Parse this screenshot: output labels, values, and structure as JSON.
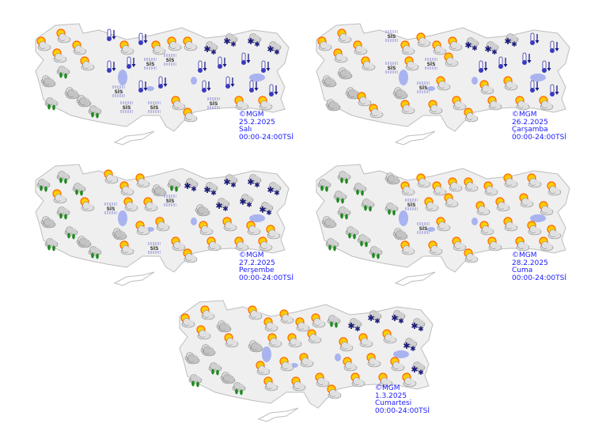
{
  "colors": {
    "land": "#efefef",
    "border": "#bdbdbd",
    "caption": "#1a1aff",
    "lake": "#a9b3f0"
  },
  "icon_legend": {
    "pc": "sun-cloud-icon",
    "cloudy": "cloud-icon",
    "rain": "rain-icon",
    "snow": "snow-icon",
    "cold": "cold-thermometer-icon",
    "fog": "fog-icon"
  },
  "fog_label": "SİS",
  "maps": [
    {
      "copyright": "©MGM",
      "date": "25.2.2025",
      "day": "Salı",
      "period": "00:00-24:00TSİ",
      "forecast": [
        "pc",
        "pc",
        "pc",
        "pc",
        "pc",
        "rain",
        "cloudy",
        "cloudy",
        "rain",
        "cloudy",
        "rain",
        "cold",
        "pc",
        "cold",
        "pc",
        "pc",
        "cold",
        "cold",
        "fog",
        "fog",
        "fog",
        "cold",
        "cold",
        "fog",
        "fog",
        "pc",
        "pc",
        "snow",
        "snow",
        "snow",
        "snow",
        "cold",
        "cold",
        "cold",
        "cold",
        "cold",
        "cold",
        "cold",
        "cold",
        "fog",
        "pc",
        "pc",
        "pc"
      ]
    },
    {
      "copyright": "©MGM",
      "date": "26.2.2025",
      "day": "Çarşamba",
      "period": "00:00-24:00TSİ",
      "forecast": [
        "pc",
        "pc",
        "pc",
        "pc",
        "pc",
        "cloudy",
        "cloudy",
        "cloudy",
        "cloudy",
        "pc",
        "pc",
        "fog",
        "pc",
        "pc",
        "pc",
        "pc",
        "fog",
        "pc",
        "fog",
        "pc",
        "cloudy",
        "fog",
        "pc",
        "pc",
        "pc",
        "pc",
        "snow",
        "snow",
        "snow",
        "cold",
        "cold",
        "cold",
        "cold",
        "cold",
        "cold",
        "pc",
        "pc",
        "cold",
        "cold",
        "pc",
        "pc",
        "pc",
        "pc"
      ]
    },
    {
      "copyright": "©MGM",
      "date": "27.2.2025",
      "day": "Perşembe",
      "period": "00:00-24:00TSİ",
      "forecast": [
        "rain",
        "rain",
        "pc",
        "rain",
        "pc",
        "rain",
        "cloudy",
        "rain",
        "rain",
        "cloudy",
        "rain",
        "pc",
        "pc",
        "pc",
        "cloudy",
        "rain",
        "fog",
        "pc",
        "pc",
        "fog",
        "cloudy",
        "pc",
        "pc",
        "pc",
        "fog",
        "pc",
        "snow",
        "snow",
        "snow",
        "snow",
        "snow",
        "cloudy",
        "snow",
        "snow",
        "snow",
        "pc",
        "pc",
        "pc",
        "pc",
        "pc",
        "pc",
        "pc",
        "pc"
      ]
    },
    {
      "copyright": "©MGM",
      "date": "28.2.2025",
      "day": "Cuma",
      "period": "00:00-24:00TSİ",
      "forecast": [
        "rain",
        "rain",
        "rain",
        "rain",
        "rain",
        "rain",
        "cloudy",
        "rain",
        "rain",
        "rain",
        "rain",
        "cloudy",
        "pc",
        "pc",
        "pc",
        "pc",
        "rain",
        "fog",
        "pc",
        "pc",
        "cloudy",
        "fog",
        "pc",
        "pc",
        "pc",
        "pc",
        "pc",
        "pc",
        "pc",
        "pc",
        "pc",
        "pc",
        "pc",
        "pc",
        "pc",
        "pc",
        "pc",
        "pc",
        "pc",
        "pc",
        "pc",
        "pc",
        "pc"
      ]
    },
    {
      "copyright": "©MGM",
      "date": "1.3.2025",
      "day": "Cumartesi",
      "period": "00:00-24:00TSİ",
      "forecast": [
        "pc",
        "pc",
        "pc",
        "cloudy",
        "pc",
        "cloudy",
        "cloudy",
        "rain",
        "rain",
        "cloudy",
        "rain",
        "pc",
        "pc",
        "pc",
        "pc",
        "pc",
        "cloudy",
        "pc",
        "pc",
        "pc",
        "pc",
        "pc",
        "pc",
        "pc",
        "pc",
        "pc",
        "rain",
        "snow",
        "snow",
        "snow",
        "snow",
        "pc",
        "pc",
        "pc",
        "snow",
        "pc",
        "pc",
        "pc",
        "snow",
        "pc",
        "pc",
        "pc",
        "pc"
      ]
    }
  ]
}
